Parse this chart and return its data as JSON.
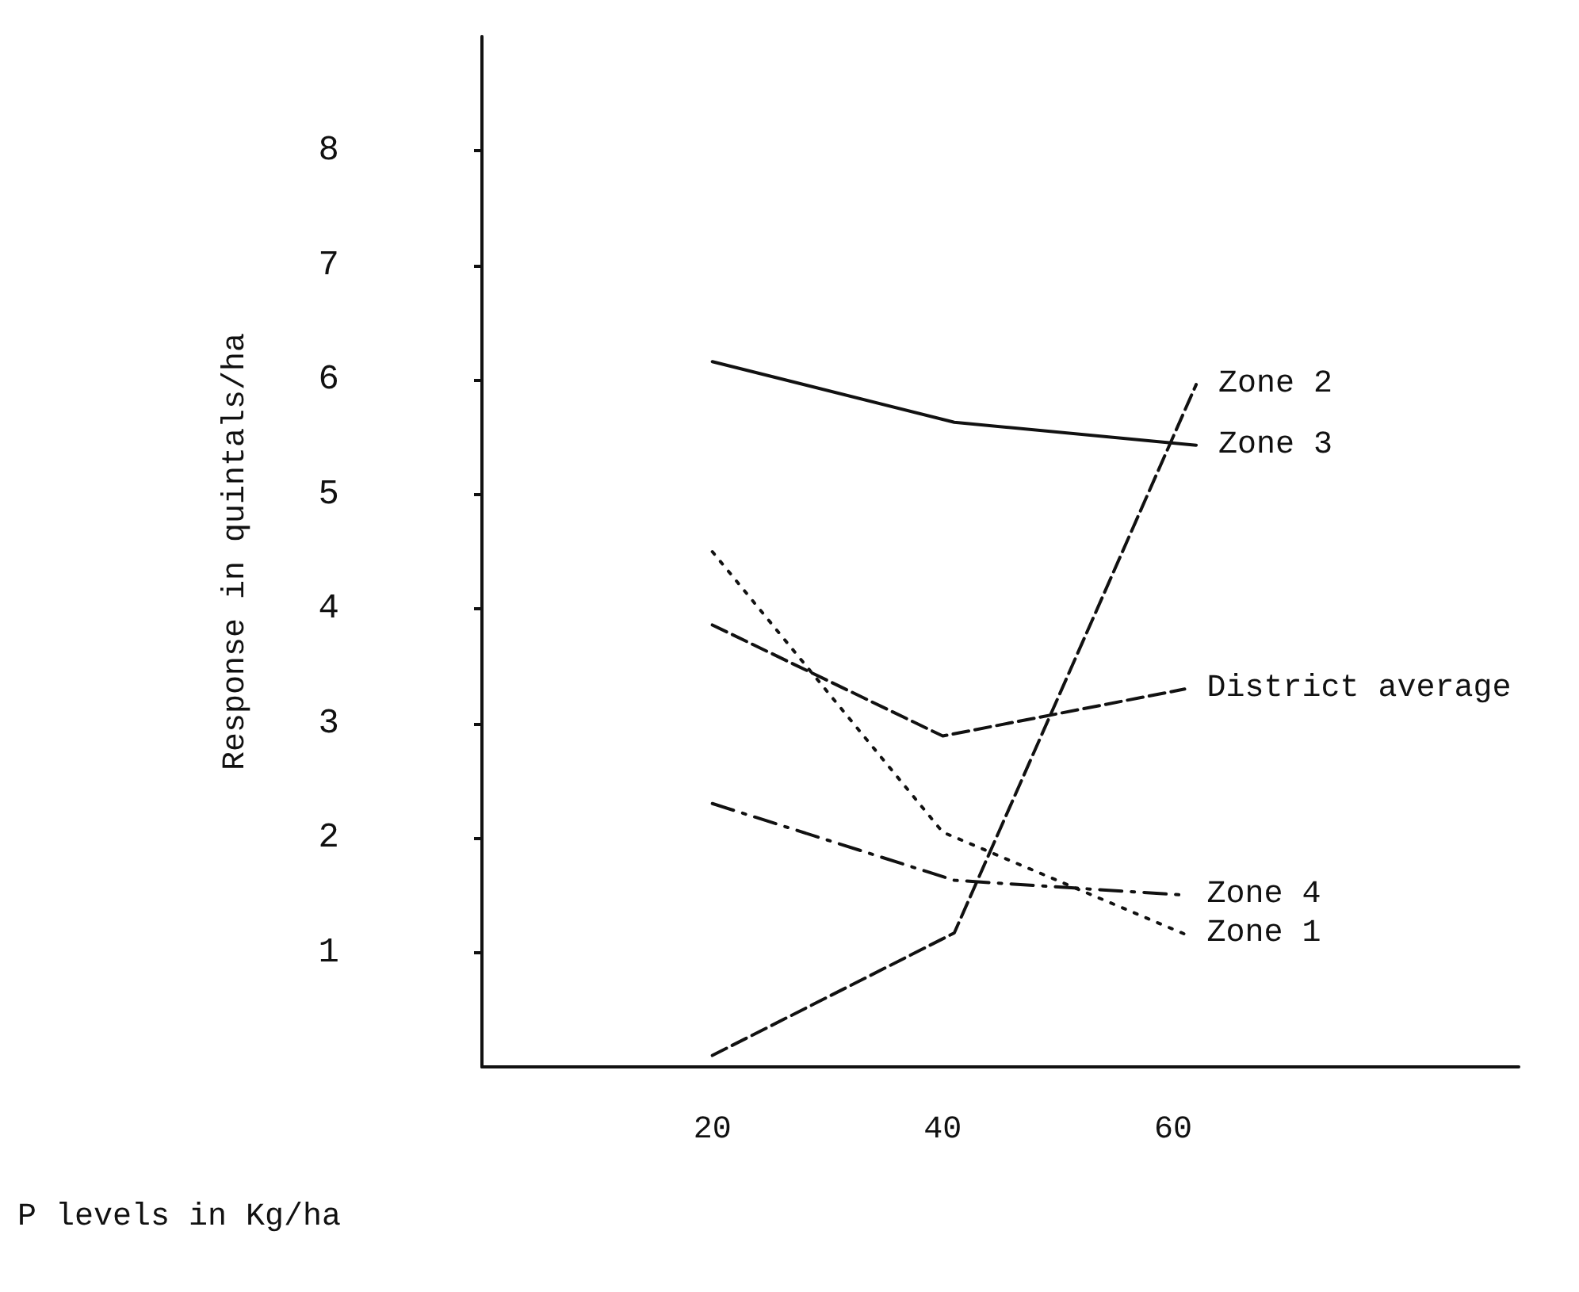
{
  "chart_data": {
    "type": "line",
    "xlabel": "P levels in Kg/ha",
    "ylabel": "Response in quintals/ha",
    "xlim": [
      0,
      90
    ],
    "xticks": [
      20,
      40,
      60
    ],
    "ylim": [
      0,
      9
    ],
    "yticks": [
      1,
      2,
      3,
      4,
      5,
      6,
      7,
      8
    ],
    "grid": false,
    "legend": false,
    "marker": "none",
    "series": [
      {
        "name": "Zone 2",
        "color": "#111111",
        "line_style": "dashed",
        "x": [
          20,
          41,
          62
        ],
        "values": [
          0.1,
          1.17,
          5.96
        ]
      },
      {
        "name": "Zone 3",
        "color": "#111111",
        "line_style": "solid",
        "x": [
          20,
          41,
          62
        ],
        "values": [
          6.16,
          5.63,
          5.43
        ]
      },
      {
        "name": "District average",
        "color": "#111111",
        "line_style": "dashed",
        "x": [
          20,
          40,
          61
        ],
        "values": [
          3.86,
          2.89,
          3.3
        ]
      },
      {
        "name": "Zone 4",
        "color": "#111111",
        "line_style": "dashdot",
        "x": [
          20,
          41,
          61
        ],
        "values": [
          2.3,
          1.63,
          1.5
        ]
      },
      {
        "name": "Zone 1",
        "color": "#111111",
        "line_style": "dotted",
        "x": [
          20,
          40,
          61
        ],
        "values": [
          4.5,
          2.05,
          1.16
        ]
      }
    ]
  }
}
